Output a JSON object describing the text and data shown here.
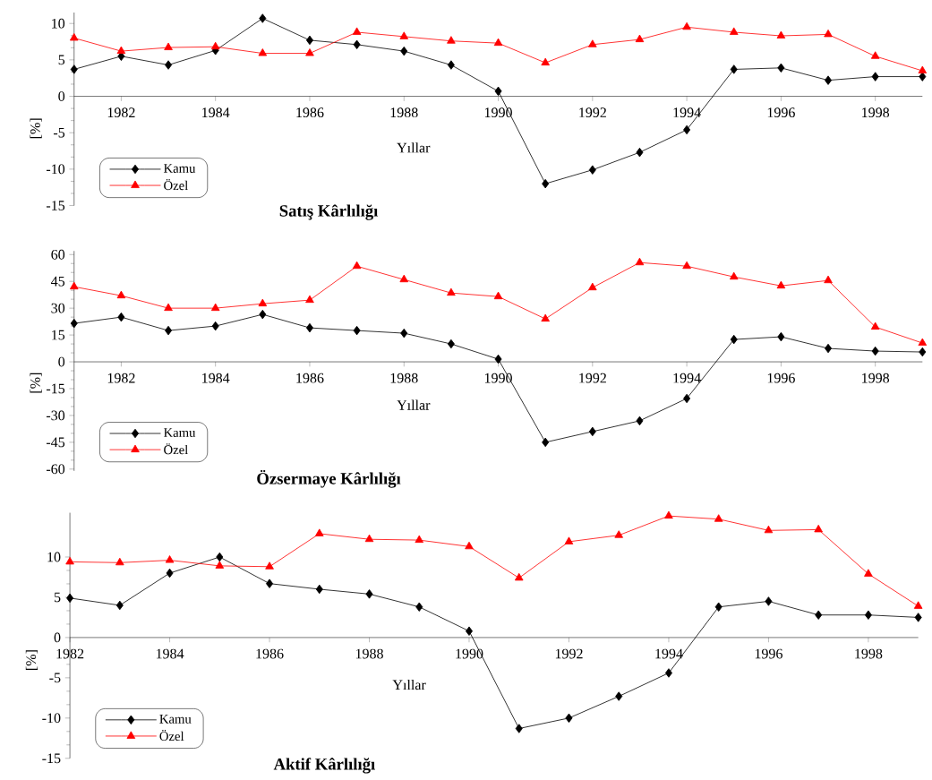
{
  "chart_data": [
    {
      "type": "line",
      "title": "Satış Kârlılığı",
      "xlabel": "Yıllar",
      "ylabel": "[%]",
      "x": [
        1981,
        1982,
        1983,
        1984,
        1985,
        1986,
        1987,
        1988,
        1989,
        1990,
        1991,
        1992,
        1993,
        1994,
        1995,
        1996,
        1997,
        1998,
        1999
      ],
      "xlim": [
        1981,
        1999
      ],
      "xticks": [
        1982,
        1984,
        1986,
        1988,
        1990,
        1992,
        1994,
        1996,
        1998
      ],
      "ylim": [
        -15,
        11.5
      ],
      "yticks": [
        -15,
        -10,
        -5,
        0,
        5,
        10
      ],
      "legend": "bottom left",
      "grid": false,
      "series": [
        {
          "name": "Kamu",
          "color": "#000000",
          "marker": "diamond",
          "values": [
            3.7,
            5.5,
            4.3,
            6.3,
            10.7,
            7.7,
            7.1,
            6.2,
            4.3,
            0.7,
            -12,
            -10.1,
            -7.7,
            -4.6,
            3.7,
            3.9,
            2.2,
            2.7,
            2.7
          ]
        },
        {
          "name": "Özel",
          "color": "#ff0000",
          "marker": "triangle",
          "values": [
            8.0,
            6.2,
            6.7,
            6.8,
            5.9,
            5.9,
            8.8,
            8.2,
            7.6,
            7.3,
            4.6,
            7.1,
            7.8,
            9.5,
            8.8,
            8.3,
            8.5,
            5.5,
            3.5
          ]
        }
      ]
    },
    {
      "type": "line",
      "title": "Özsermaye  Kârlılığı",
      "xlabel": "Yıllar",
      "ylabel": "[%]",
      "x": [
        1981,
        1982,
        1983,
        1984,
        1985,
        1986,
        1987,
        1988,
        1989,
        1990,
        1991,
        1992,
        1993,
        1994,
        1995,
        1996,
        1997,
        1998,
        1999
      ],
      "xlim": [
        1981,
        1999
      ],
      "xticks": [
        1982,
        1984,
        1986,
        1988,
        1990,
        1992,
        1994,
        1996,
        1998
      ],
      "ylim": [
        -61,
        62
      ],
      "yticks": [
        -60,
        -45,
        -30,
        -15,
        0,
        15,
        30,
        45,
        60
      ],
      "legend": "bottom left",
      "grid": false,
      "series": [
        {
          "name": "Kamu",
          "color": "#000000",
          "marker": "diamond",
          "values": [
            21.5,
            25,
            17.5,
            20,
            26.5,
            19,
            17.5,
            16,
            10,
            1.5,
            -45,
            -39,
            -33,
            -20.5,
            12.5,
            14,
            7.5,
            6,
            5.5
          ]
        },
        {
          "name": "Özel",
          "color": "#ff0000",
          "marker": "triangle",
          "values": [
            42,
            37,
            30,
            30,
            32.5,
            34.5,
            53.5,
            46,
            38.5,
            36.5,
            24,
            41.5,
            55.5,
            53.5,
            47.5,
            42.5,
            45.5,
            19.5,
            10.5
          ]
        }
      ]
    },
    {
      "type": "line",
      "title": "Aktif  Kârlılığı",
      "xlabel": "Yıllar",
      "ylabel": "[%]",
      "x": [
        1982,
        1983,
        1984,
        1985,
        1986,
        1987,
        1988,
        1989,
        1990,
        1991,
        1992,
        1993,
        1994,
        1995,
        1996,
        1997,
        1998,
        1999
      ],
      "xlim": [
        1982,
        1999
      ],
      "xticks": [
        1982,
        1984,
        1986,
        1988,
        1990,
        1992,
        1994,
        1996,
        1998
      ],
      "ylim": [
        -15,
        15.5
      ],
      "yticks": [
        -15,
        -10,
        -5,
        0,
        5,
        10
      ],
      "legend": "bottom left",
      "grid": false,
      "series": [
        {
          "name": "Kamu",
          "color": "#000000",
          "marker": "diamond",
          "values": [
            4.9,
            4.0,
            8.0,
            10,
            6.7,
            6.0,
            5.4,
            3.8,
            0.8,
            -11.3,
            -10,
            -7.3,
            -4.4,
            3.8,
            4.5,
            2.8,
            2.8,
            2.5
          ]
        },
        {
          "name": "Özel",
          "color": "#ff0000",
          "marker": "triangle",
          "values": [
            9.4,
            9.3,
            9.6,
            8.9,
            8.8,
            12.9,
            12.2,
            12.1,
            11.3,
            7.4,
            11.9,
            12.7,
            15.1,
            14.7,
            13.3,
            13.4,
            7.9,
            3.9
          ]
        }
      ]
    }
  ]
}
